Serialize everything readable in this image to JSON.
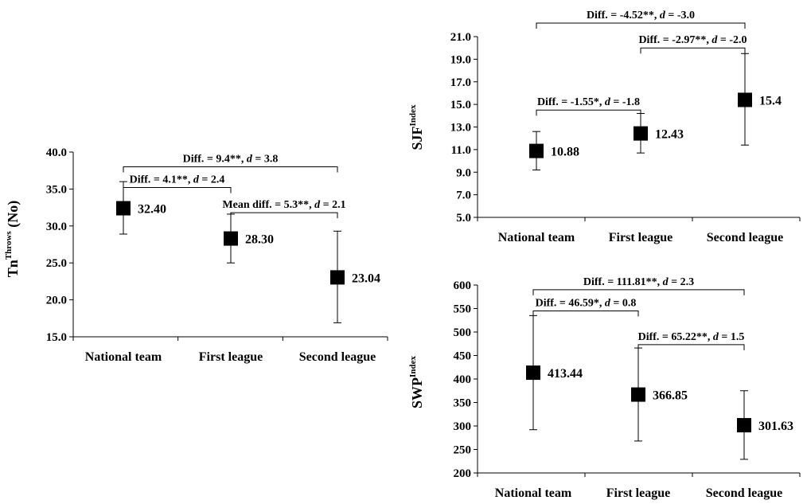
{
  "chart_data": [
    {
      "type": "scatter",
      "categories": [
        "National team",
        "First league",
        "Second league"
      ],
      "values": [
        32.4,
        28.3,
        23.04
      ],
      "value_labels": [
        "32.40",
        "28.30",
        "23.04"
      ],
      "error_low": [
        28.9,
        25.0,
        16.9
      ],
      "error_high": [
        36.0,
        31.6,
        29.3
      ],
      "ylim": [
        15.0,
        40.0
      ],
      "yticks": [
        "15.0",
        "20.0",
        "25.0",
        "30.0",
        "35.0",
        "40.0"
      ],
      "ylabel_main": "Tn",
      "ylabel_sup": "Throws",
      "ylabel_suffix": " (No)",
      "annotations": [
        {
          "from": 0,
          "to": 2,
          "text_a": "Diff. = 9.4**, ",
          "text_d": "d",
          "text_b": " = 3.8",
          "level": 38.0
        },
        {
          "from": 0,
          "to": 1,
          "text_a": "Diff. = 4.1**, ",
          "text_d": "d",
          "text_b": " = 2.4",
          "level": 35.2
        },
        {
          "from": 1,
          "to": 2,
          "text_a": "Mean diff. = 5.3**, ",
          "text_d": "d",
          "text_b": " = 2.1",
          "level": 31.8
        }
      ]
    },
    {
      "type": "scatter",
      "categories": [
        "National team",
        "First league",
        "Second league"
      ],
      "values": [
        10.88,
        12.43,
        15.4
      ],
      "value_labels": [
        "10.88",
        "12.43",
        "15.4"
      ],
      "error_low": [
        9.2,
        10.7,
        11.4
      ],
      "error_high": [
        12.6,
        14.2,
        19.5
      ],
      "ylim": [
        5.0,
        21.0
      ],
      "yticks": [
        "5.0",
        "7.0",
        "9.0",
        "11.0",
        "13.0",
        "15.0",
        "17.0",
        "19.0",
        "21.0"
      ],
      "ylabel_main": "SJF",
      "ylabel_sup": "Index",
      "ylabel_suffix": "",
      "annotations": [
        {
          "from": 0,
          "to": 2,
          "text_a": "Diff. = -4.52**, ",
          "text_d": "d",
          "text_b": " = -3.0",
          "level": 22.2
        },
        {
          "from": 1,
          "to": 2,
          "text_a": "Diff. = -2.97**, ",
          "text_d": "d",
          "text_b": " = -2.0",
          "level": 20.0
        },
        {
          "from": 0,
          "to": 1,
          "text_a": "Diff. = -1.55*, ",
          "text_d": "d",
          "text_b": " = -1.8",
          "level": 14.5
        }
      ]
    },
    {
      "type": "scatter",
      "categories": [
        "National team",
        "First league",
        "Second league"
      ],
      "values": [
        413.44,
        366.85,
        301.63
      ],
      "value_labels": [
        "413.44",
        "366.85",
        "301.63"
      ],
      "error_low": [
        292,
        268,
        229
      ],
      "error_high": [
        535,
        466,
        375
      ],
      "ylim": [
        200,
        600
      ],
      "yticks": [
        "200",
        "250",
        "300",
        "350",
        "400",
        "450",
        "500",
        "550",
        "600"
      ],
      "ylabel_main": "SWP",
      "ylabel_sup": "Index",
      "ylabel_suffix": "",
      "annotations": [
        {
          "from": 0,
          "to": 2,
          "text_a": "Diff. = 111.81**, ",
          "text_d": "d",
          "text_b": " = 2.3",
          "level": 590
        },
        {
          "from": 0,
          "to": 1,
          "text_a": "Diff. = 46.59*, ",
          "text_d": "d",
          "text_b": " = 0.8",
          "level": 545
        },
        {
          "from": 1,
          "to": 2,
          "text_a": "Diff. = 65.22**, ",
          "text_d": "d",
          "text_b": " = 1.5",
          "level": 473
        }
      ]
    }
  ]
}
